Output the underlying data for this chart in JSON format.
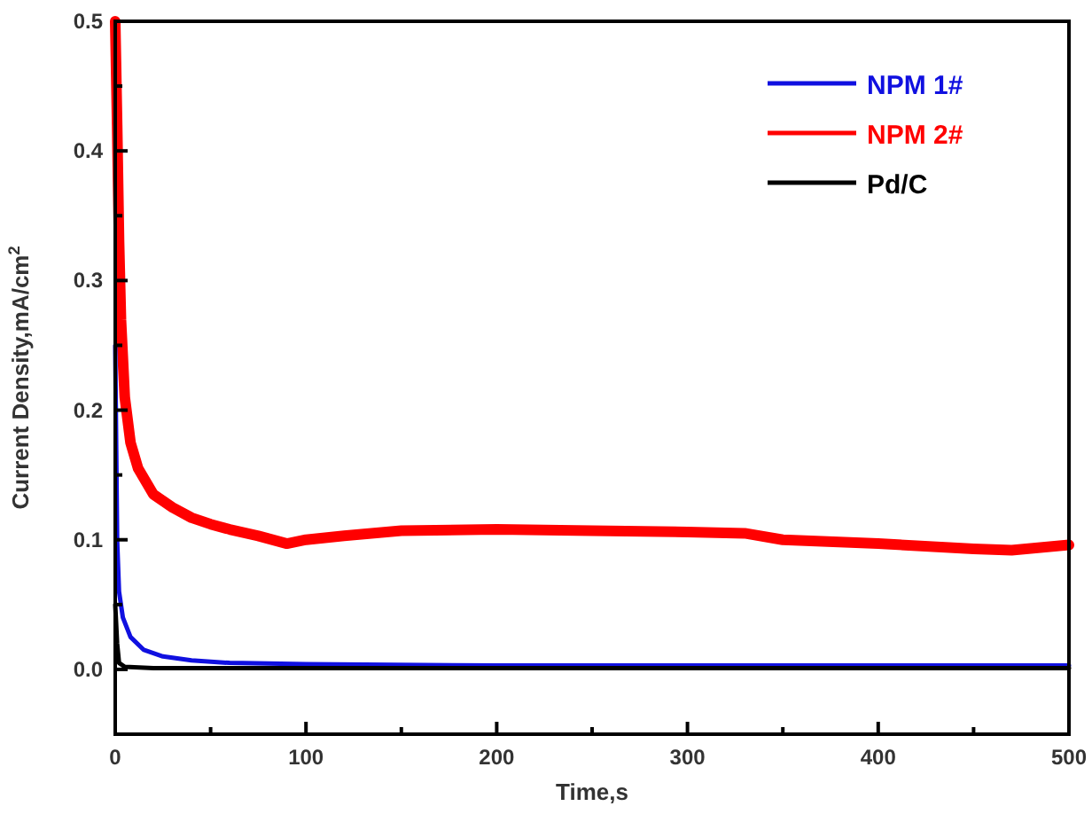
{
  "chart_data": {
    "type": "line",
    "xlabel": "Time,s",
    "ylabel": "Current Density,mA/cm$^{2}$",
    "xlim": [
      0,
      500
    ],
    "xticks": [
      0,
      {
        "value": 50,
        "label": null
      },
      100,
      {
        "value": 150,
        "label": null
      },
      200,
      {
        "value": 250,
        "label": null
      },
      300,
      {
        "value": 350,
        "label": null
      },
      400,
      {
        "value": 450,
        "label": null
      },
      500
    ],
    "ylim": [
      -0.05,
      0.5
    ],
    "yticks": [
      {
        "value": 0,
        "label": "0.0"
      },
      {
        "value": 0.05,
        "label": null
      },
      0.1,
      {
        "value": 0.15,
        "label": null
      },
      0.2,
      {
        "value": 0.25,
        "label": null
      },
      0.3,
      {
        "value": 0.35,
        "label": null
      },
      0.4,
      {
        "value": 0.45,
        "label": null
      },
      0.5
    ],
    "legend": "top right",
    "line_style": "solid",
    "series": [
      {
        "name": "NPM 1#",
        "color": "#1010e0",
        "x": [
          0,
          1,
          2,
          4,
          8,
          15,
          25,
          40,
          60,
          100,
          200,
          500
        ],
        "values": [
          0.25,
          0.1,
          0.06,
          0.04,
          0.025,
          0.015,
          0.01,
          0.007,
          0.005,
          0.004,
          0.003,
          0.003
        ]
      },
      {
        "name": "NPM 2#",
        "color": "#ff0000",
        "x": [
          0,
          1,
          2,
          3,
          5,
          8,
          12,
          20,
          30,
          40,
          50,
          60,
          75,
          90,
          100,
          120,
          150,
          200,
          250,
          300,
          330,
          350,
          400,
          450,
          470,
          500
        ],
        "values": [
          0.5,
          0.42,
          0.33,
          0.27,
          0.21,
          0.175,
          0.155,
          0.135,
          0.125,
          0.117,
          0.112,
          0.108,
          0.103,
          0.097,
          0.1,
          0.103,
          0.107,
          0.108,
          0.107,
          0.106,
          0.105,
          0.1,
          0.097,
          0.093,
          0.092,
          0.096
        ]
      },
      {
        "name": "Pd/C",
        "color": "#000000",
        "x": [
          0,
          1,
          2,
          5,
          20,
          500
        ],
        "values": [
          0.05,
          0.02,
          0.005,
          0.002,
          0.001,
          0.001
        ]
      }
    ]
  }
}
